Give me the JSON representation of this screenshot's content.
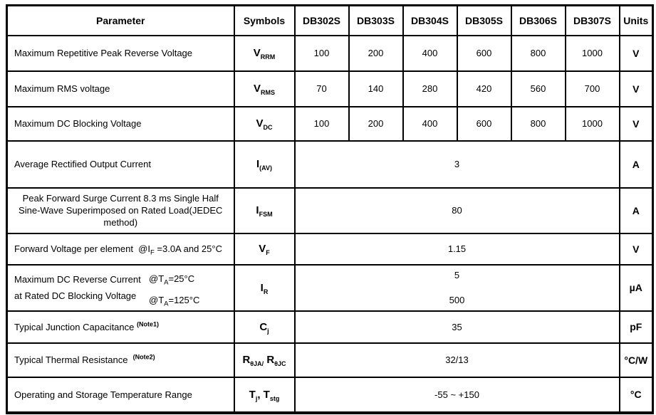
{
  "table": {
    "header": {
      "parameter": "Parameter",
      "symbols": "Symbols",
      "models": [
        "DB302S",
        "DB303S",
        "DB304S",
        "DB305S",
        "DB306S",
        "DB307S"
      ],
      "units": "Units"
    },
    "rows": [
      {
        "param": [
          {
            "t": "Maximum Repetitive Peak Reverse Voltage"
          }
        ],
        "symbol": [
          {
            "t": "V"
          },
          {
            "s": "RRM"
          }
        ],
        "values": [
          "100",
          "200",
          "400",
          "600",
          "800",
          "1000"
        ],
        "unit": "V"
      },
      {
        "param": [
          {
            "t": "Maximum RMS voltage"
          }
        ],
        "symbol": [
          {
            "t": "V"
          },
          {
            "s": "RMS"
          }
        ],
        "values": [
          "70",
          "140",
          "280",
          "420",
          "560",
          "700"
        ],
        "unit": "V"
      },
      {
        "param": [
          {
            "t": "Maximum DC Blocking Voltage"
          }
        ],
        "symbol": [
          {
            "t": "V"
          },
          {
            "s": "DC"
          }
        ],
        "values": [
          "100",
          "200",
          "400",
          "600",
          "800",
          "1000"
        ],
        "unit": "V"
      },
      {
        "param": [
          {
            "t": "Average Rectified Output Current"
          }
        ],
        "symbol": [
          {
            "t": "I"
          },
          {
            "s": "(AV)"
          }
        ],
        "merged": [
          "3"
        ],
        "unit": "A"
      },
      {
        "param": [
          {
            "t": "Peak Forward Surge Current 8.3 ms Single Half Sine-Wave Superimposed on Rated Load(JEDEC method)"
          }
        ],
        "symbol": [
          {
            "t": "I"
          },
          {
            "s": "FSM"
          }
        ],
        "merged": [
          "80"
        ],
        "unit": "A"
      },
      {
        "param": [
          {
            "t": "Forward Voltage per element  @I"
          },
          {
            "s": "F"
          },
          {
            "t": " =3.0A and 25°C"
          }
        ],
        "symbol": [
          {
            "t": "V"
          },
          {
            "s": "F"
          }
        ],
        "merged": [
          "1.15"
        ],
        "unit": "V"
      },
      {
        "param_left": [
          "Maximum DC Reverse Current",
          "at Rated DC Blocking Voltage"
        ],
        "conditions": [
          [
            {
              "t": "@T"
            },
            {
              "s": "A"
            },
            {
              "t": "=25°C"
            }
          ],
          [
            {
              "t": "@T"
            },
            {
              "s": "A"
            },
            {
              "t": "=125°C"
            }
          ]
        ],
        "symbol": [
          {
            "t": "I"
          },
          {
            "s": "R"
          }
        ],
        "merged": [
          "5",
          "500"
        ],
        "unit": "µA"
      },
      {
        "param": [
          {
            "t": "Typical Junction Capacitance "
          },
          {
            "p": "(Note1)"
          }
        ],
        "symbol": [
          {
            "t": "C"
          },
          {
            "s": "j"
          }
        ],
        "merged": [
          "35"
        ],
        "unit": "pF"
      },
      {
        "param": [
          {
            "t": "Typical Thermal Resistance  "
          },
          {
            "p": "(Note2)"
          }
        ],
        "symbol": [
          {
            "t": "R"
          },
          {
            "s": "θJA/"
          },
          {
            "t": " R"
          },
          {
            "s": "θJC"
          }
        ],
        "merged": [
          "32/13"
        ],
        "unit": "°C/W"
      },
      {
        "param": [
          {
            "t": "Operating and Storage Temperature Range"
          }
        ],
        "symbol": [
          {
            "t": "T"
          },
          {
            "s": "j"
          },
          {
            "t": ", T"
          },
          {
            "s": "stg"
          }
        ],
        "merged": [
          "-55 ~ +150"
        ],
        "unit": "°C"
      }
    ]
  }
}
